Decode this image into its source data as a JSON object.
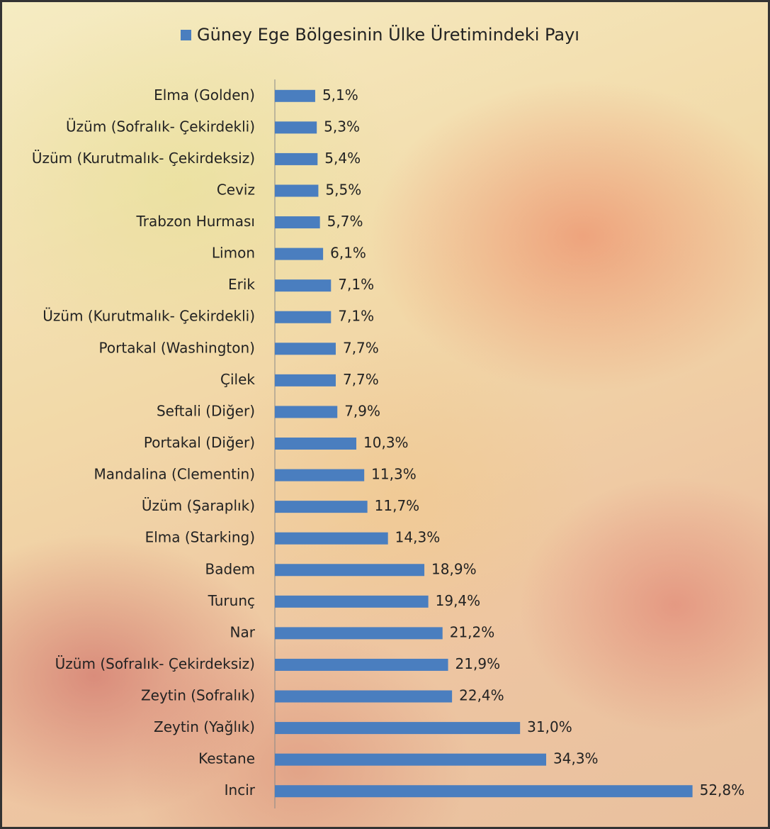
{
  "chart_data": {
    "type": "barh",
    "categories": [
      "Elma (Golden)",
      "Üzüm (Sofralık- Çekirdekli)",
      "Üzüm (Kurutmalık- Çekirdeksiz)",
      "Ceviz",
      "Trabzon Hurması",
      "Limon",
      "Erik",
      "Üzüm (Kurutmalık- Çekirdekli)",
      "Portakal (Washington)",
      "Çilek",
      "Seftali (Diğer)",
      "Portakal (Diğer)",
      "Mandalina (Clementin)",
      "Üzüm (Şaraplık)",
      "Elma (Starking)",
      "Badem",
      "Turunç",
      "Nar",
      "Üzüm (Sofralık- Çekirdeksiz)",
      "Zeytin (Sofralık)",
      "Zeytin (Yağlık)",
      "Kestane",
      "Incir"
    ],
    "series": [
      {
        "name": "Güney Ege Bölgesinin Ülke Üretimindeki Payı",
        "color": "#4a7ebf",
        "values": [
          5.1,
          5.3,
          5.4,
          5.5,
          5.7,
          6.1,
          7.1,
          7.1,
          7.7,
          7.7,
          7.9,
          10.3,
          11.3,
          11.7,
          14.3,
          18.9,
          19.4,
          21.2,
          21.9,
          22.4,
          31.0,
          34.3,
          52.8
        ],
        "value_labels": [
          "5,1%",
          "5,3%",
          "5,4%",
          "5,5%",
          "5,7%",
          "6,1%",
          "7,1%",
          "7,1%",
          "7,7%",
          "7,7%",
          "7,9%",
          "10,3%",
          "11,3%",
          "11,7%",
          "14,3%",
          "18,9%",
          "19,4%",
          "21,2%",
          "21,9%",
          "22,4%",
          "31,0%",
          "34,3%",
          "52,8%"
        ]
      }
    ],
    "xlim": [
      0,
      60
    ]
  }
}
